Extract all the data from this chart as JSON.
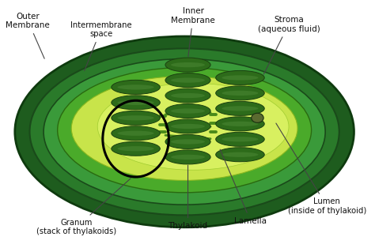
{
  "bg_color": "#ffffff",
  "c_outer1": "#1e5c1e",
  "c_outer2": "#2a7a2a",
  "c_outer3": "#3a9a3a",
  "c_stroma_dark": "#4aaa2a",
  "c_stroma_light": "#c8e44a",
  "c_stroma_inner": "#d8f060",
  "c_thylakoid": "#2d6b1a",
  "c_thylakoid_edge": "#1a4010",
  "c_thylakoid_lumen": "#3d7a28",
  "c_lamella": "#4a8a1a",
  "c_lumen_dot": "#5a6a30",
  "label_color": "#111111",
  "labels": {
    "outer_membrane": "Outer\nMembrane",
    "intermembrane": "Intermembrane\nspace",
    "inner_membrane": "Inner\nMembrane",
    "stroma": "Stroma\n(aqueous fluid)",
    "granum": "Granum\n(stack of thylakoids)",
    "thylakoid": "Thylakoid",
    "lamella": "Lamella",
    "lumen": "Lumen\n(inside of thylakoid)"
  }
}
